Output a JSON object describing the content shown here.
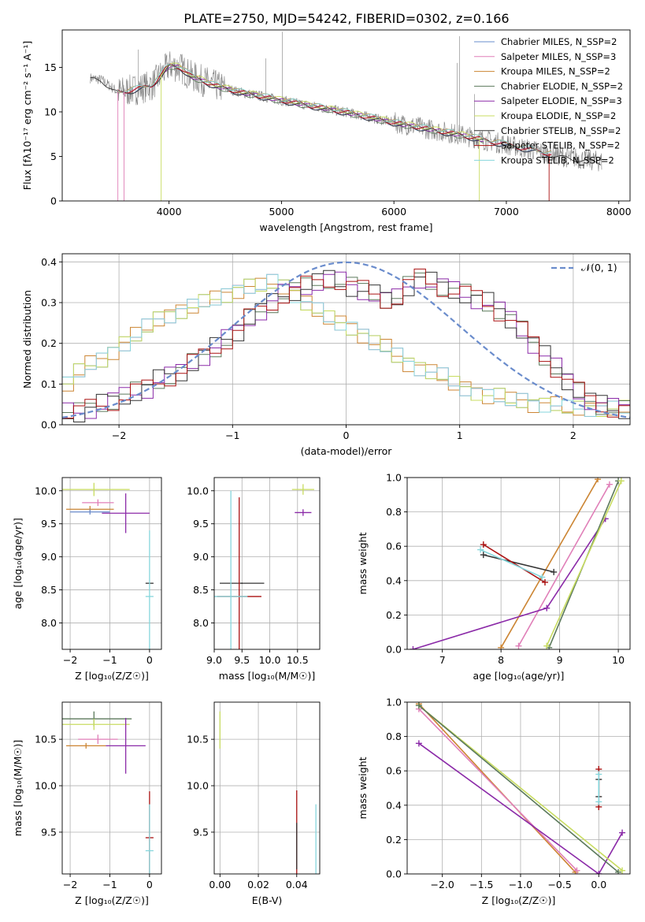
{
  "title": "PLATE=2750, MJD=54242, FIBERID=0302, z=0.166",
  "colors": {
    "data": "#808080",
    "chabrier_miles": "#6a8ccc",
    "salpeter_miles": "#e07fb8",
    "kroupa_miles": "#cc8533",
    "chabrier_elodie": "#5c7a5c",
    "salpeter_elodie": "#8b2aa8",
    "kroupa_elodie": "#c8dc60",
    "chabrier_stelib": "#333333",
    "salpeter_stelib": "#aa1111",
    "kroupa_stelib": "#86d6dc",
    "normal": "#6a8ccc",
    "grid": "#b0b0b0"
  },
  "chart_data": [
    {
      "id": "spectrum",
      "type": "line",
      "xlabel": "wavelength [Angstrom, rest frame]",
      "ylabel": "Flux [fλ10⁻¹⁷ erg cm⁻² s⁻¹ A⁻¹]",
      "xlim": [
        3050,
        8100
      ],
      "ylim": [
        0,
        19.2
      ],
      "xticks": [
        4000,
        5000,
        6000,
        7000,
        8000
      ],
      "yticks": [
        0,
        5,
        10,
        15
      ],
      "grid": false,
      "legend": "top-right",
      "legend_entries": [
        "Chabrier MILES, N_SSP=2",
        "Salpeter MILES, N_SSP=3",
        "Kroupa MILES, N_SSP=2",
        "Chabrier ELODIE, N_SSP=2",
        "Salpeter ELODIE, N_SSP=3",
        "Kroupa ELODIE, N_SSP=2",
        "Chabrier STELIB, N_SSP=2",
        "Salpeter STELIB, N_SSP=2",
        "Kroupa STELIB, N_SSP=2"
      ],
      "model_curve": {
        "x": [
          3300,
          3400,
          3550,
          3700,
          3850,
          3950,
          4000,
          4100,
          4200,
          4400,
          4600,
          4800,
          5000,
          5300,
          5600,
          6000,
          6300,
          6600,
          6900,
          7200,
          7500,
          7850
        ],
        "y": [
          13.8,
          13.6,
          12.2,
          12.5,
          13.0,
          14.5,
          15.2,
          15.0,
          14.0,
          13.0,
          12.3,
          11.8,
          11.3,
          10.6,
          9.9,
          8.8,
          8.1,
          7.4,
          6.6,
          5.8,
          5.0,
          4.4
        ]
      }
    },
    {
      "id": "residuals",
      "type": "line",
      "xlabel": "(data-model)/error",
      "ylabel": "Normed distribution",
      "xlim": [
        -2.5,
        2.5
      ],
      "ylim": [
        0,
        0.42
      ],
      "xticks": [
        -2,
        -1,
        0,
        1,
        2
      ],
      "yticks": [
        0.0,
        0.1,
        0.2,
        0.3,
        0.4
      ],
      "grid": true,
      "legend": "top-right",
      "legend_entries": [
        "𝒩(0, 1)"
      ],
      "wide_group": [
        0.1,
        0.13,
        0.15,
        0.16,
        0.18,
        0.2,
        0.22,
        0.24,
        0.26,
        0.27,
        0.28,
        0.29,
        0.3,
        0.31,
        0.32,
        0.33,
        0.34,
        0.34,
        0.35,
        0.34,
        0.32,
        0.3,
        0.28,
        0.26,
        0.25,
        0.24,
        0.22,
        0.2,
        0.19,
        0.17,
        0.15,
        0.14,
        0.13,
        0.12,
        0.1,
        0.09,
        0.08,
        0.07,
        0.07,
        0.06,
        0.06,
        0.05,
        0.05,
        0.05,
        0.04,
        0.04,
        0.04,
        0.04,
        0.04,
        0.04
      ],
      "narrow_group": [
        0.03,
        0.03,
        0.04,
        0.05,
        0.06,
        0.07,
        0.08,
        0.09,
        0.11,
        0.12,
        0.13,
        0.15,
        0.17,
        0.19,
        0.21,
        0.23,
        0.26,
        0.28,
        0.3,
        0.32,
        0.33,
        0.34,
        0.35,
        0.36,
        0.35,
        0.34,
        0.33,
        0.32,
        0.31,
        0.31,
        0.34,
        0.36,
        0.35,
        0.34,
        0.33,
        0.32,
        0.31,
        0.3,
        0.28,
        0.26,
        0.23,
        0.2,
        0.17,
        0.14,
        0.11,
        0.08,
        0.06,
        0.05,
        0.04,
        0.04
      ]
    },
    {
      "id": "age_vs_Z",
      "type": "scatter",
      "xlabel": "Z [log₁₀(Z/Z☉)]",
      "ylabel": "age  [log₁₀(age/yr)]",
      "xlim": [
        -2.2,
        0.3
      ],
      "ylim": [
        7.6,
        10.2
      ],
      "xticks": [
        -2,
        -1,
        0
      ],
      "yticks": [
        8.0,
        8.5,
        9.0,
        9.5,
        10.0
      ],
      "grid": true,
      "points": [
        {
          "model": "kroupa_elodie",
          "x": -1.4,
          "xerr": 0.9,
          "y": 10.02,
          "yerr": 0.1
        },
        {
          "model": "salpeter_miles",
          "x": -1.3,
          "xerr": 0.4,
          "y": 9.82,
          "yerr": 0.05
        },
        {
          "model": "kroupa_miles",
          "x": -1.5,
          "xerr": 0.6,
          "y": 9.72,
          "yerr": 0.05
        },
        {
          "model": "chabrier_miles",
          "x": -1.5,
          "xerr": 0.5,
          "y": 9.68,
          "yerr": 0.04
        },
        {
          "model": "salpeter_elodie",
          "x": -0.6,
          "xerr": 0.6,
          "y": 9.66,
          "yerr": 0.3
        },
        {
          "model": "chabrier_stelib",
          "x": 0.0,
          "xerr": 0.1,
          "y": 8.6,
          "yerr": 0.01
        },
        {
          "model": "kroupa_stelib",
          "x": 0.0,
          "xerr": 0.1,
          "y": 8.4,
          "yerr": 1.0
        }
      ]
    },
    {
      "id": "age_vs_mass",
      "type": "scatter",
      "xlabel": "mass [log₁₀(M/M☉)]",
      "ylabel": "",
      "xlim": [
        9.0,
        10.9
      ],
      "ylim": [
        7.6,
        10.2
      ],
      "xticks": [
        9.0,
        9.5,
        10.0,
        10.5
      ],
      "yticks": [
        8.0,
        8.5,
        9.0,
        9.5,
        10.0
      ],
      "grid": true,
      "points": [
        {
          "model": "kroupa_elodie",
          "x": 10.6,
          "xerr": 0.2,
          "y": 10.02,
          "yerr": 0.08
        },
        {
          "model": "salpeter_elodie",
          "x": 10.6,
          "xerr": 0.15,
          "y": 9.67,
          "yerr": 0.05
        },
        {
          "model": "chabrier_stelib",
          "x": 9.5,
          "xerr": 0.4,
          "y": 8.6,
          "yerr": 0.01
        },
        {
          "model": "salpeter_stelib",
          "x": 9.45,
          "xerr": 0.4,
          "y": 8.4,
          "yerr": 1.5
        },
        {
          "model": "kroupa_stelib",
          "x": 9.3,
          "xerr": 0.3,
          "y": 8.4,
          "yerr": 1.6
        }
      ]
    },
    {
      "id": "weight_vs_age",
      "type": "line",
      "xlabel": "age  [log₁₀(age/yr)]",
      "ylabel": "mass weight",
      "xlim": [
        6.4,
        10.2
      ],
      "ylim": [
        0,
        1.0
      ],
      "xticks": [
        7,
        8,
        9,
        10
      ],
      "yticks": [
        0.0,
        0.2,
        0.4,
        0.6,
        0.8,
        1.0
      ],
      "grid": true,
      "pairs": [
        {
          "model": "kroupa_miles",
          "x": [
            8.0,
            9.65
          ],
          "y": [
            0.01,
            0.99
          ]
        },
        {
          "model": "salpeter_miles",
          "x": [
            8.3,
            9.85
          ],
          "y": [
            0.02,
            0.96
          ]
        },
        {
          "model": "salpeter_elodie",
          "x": [
            6.5,
            8.78,
            9.78
          ],
          "y": [
            0.0,
            0.24,
            0.76
          ]
        },
        {
          "model": "chabrier_elodie",
          "x": [
            8.82,
            10.0
          ],
          "y": [
            0.01,
            0.98
          ]
        },
        {
          "model": "kroupa_elodie",
          "x": [
            8.78,
            10.05
          ],
          "y": [
            0.02,
            0.98
          ]
        },
        {
          "model": "chabrier_stelib",
          "x": [
            7.7,
            8.9
          ],
          "y": [
            0.55,
            0.45
          ]
        },
        {
          "model": "salpeter_stelib",
          "x": [
            7.7,
            8.75
          ],
          "y": [
            0.61,
            0.39
          ]
        },
        {
          "model": "kroupa_stelib",
          "x": [
            7.65,
            8.7
          ],
          "y": [
            0.58,
            0.42
          ]
        }
      ]
    },
    {
      "id": "mass_vs_Z",
      "type": "scatter",
      "xlabel": "Z [log₁₀(Z/Z☉)]",
      "ylabel": "mass [log₁₀(M/M☉)]",
      "xlim": [
        -2.2,
        0.3
      ],
      "ylim": [
        9.05,
        10.9
      ],
      "xticks": [
        -2,
        -1,
        0
      ],
      "yticks": [
        9.5,
        10.0,
        10.5
      ],
      "grid": true,
      "points": [
        {
          "model": "chabrier_elodie",
          "x": -1.4,
          "xerr": 0.95,
          "y": 10.72,
          "yerr": 0.08
        },
        {
          "model": "kroupa_elodie",
          "x": -1.4,
          "xerr": 0.9,
          "y": 10.66,
          "yerr": 0.06
        },
        {
          "model": "salpeter_miles",
          "x": -1.3,
          "xerr": 0.5,
          "y": 10.5,
          "yerr": 0.05
        },
        {
          "model": "kroupa_miles",
          "x": -1.6,
          "xerr": 0.5,
          "y": 10.43,
          "yerr": 0.03
        },
        {
          "model": "salpeter_elodie",
          "x": -0.6,
          "xerr": 0.5,
          "y": 10.43,
          "yerr": 0.3
        },
        {
          "model": "salpeter_stelib",
          "x": 0.0,
          "xerr": 0.1,
          "y": 9.44,
          "yerr": 0.5
        },
        {
          "model": "kroupa_stelib",
          "x": 0.0,
          "xerr": 0.1,
          "y": 9.3,
          "yerr": 0.5
        }
      ]
    },
    {
      "id": "mass_vs_EBV",
      "type": "scatter",
      "xlabel": "E(B-V)",
      "ylabel": "",
      "xlim": [
        -0.003,
        0.052
      ],
      "ylim": [
        9.05,
        10.9
      ],
      "xticks": [
        0.0,
        0.02,
        0.04
      ],
      "yticks": [
        9.5,
        10.0,
        10.5
      ],
      "grid": true,
      "points": [
        {
          "model": "kroupa_elodie",
          "x": 0.0,
          "xerr": 0.0,
          "y": 10.6,
          "yerr": 0.2
        },
        {
          "model": "salpeter_stelib",
          "x": 0.04,
          "xerr": 0.0,
          "y": 9.5,
          "yerr": 0.45
        },
        {
          "model": "chabrier_stelib",
          "x": 0.04,
          "xerr": 0.0,
          "y": 9.35,
          "yerr": 0.25
        },
        {
          "model": "kroupa_stelib",
          "x": 0.05,
          "xerr": 0.0,
          "y": 9.4,
          "yerr": 0.4
        }
      ]
    },
    {
      "id": "weight_vs_Z",
      "type": "line",
      "xlabel": "Z [log₁₀(Z/Z☉)]",
      "ylabel": "mass weight",
      "xlim": [
        -2.45,
        0.4
      ],
      "ylim": [
        0,
        1.0
      ],
      "xticks": [
        -2.0,
        -1.5,
        -1.0,
        -0.5,
        0.0
      ],
      "yticks": [
        0.0,
        0.2,
        0.4,
        0.6,
        0.8,
        1.0
      ],
      "grid": true,
      "pairs": [
        {
          "model": "kroupa_miles",
          "x": [
            -2.3,
            -0.3
          ],
          "y": [
            0.99,
            0.01
          ]
        },
        {
          "model": "salpeter_miles",
          "x": [
            -2.3,
            -0.28
          ],
          "y": [
            0.96,
            0.02
          ]
        },
        {
          "model": "salpeter_elodie",
          "x": [
            -2.3,
            0.0,
            0.3
          ],
          "y": [
            0.76,
            0.0,
            0.24
          ]
        },
        {
          "model": "kroupa_elodie",
          "x": [
            -2.3,
            0.3
          ],
          "y": [
            0.98,
            0.02
          ]
        },
        {
          "model": "chabrier_elodie",
          "x": [
            -2.3,
            0.25
          ],
          "y": [
            0.98,
            0.01
          ]
        },
        {
          "model": "chabrier_stelib",
          "x": [
            0.0,
            0.0
          ],
          "y": [
            0.55,
            0.45
          ]
        },
        {
          "model": "salpeter_stelib",
          "x": [
            0.0,
            0.0
          ],
          "y": [
            0.61,
            0.39
          ]
        },
        {
          "model": "kroupa_stelib",
          "x": [
            0.0,
            0.0
          ],
          "y": [
            0.58,
            0.42
          ]
        }
      ]
    }
  ]
}
